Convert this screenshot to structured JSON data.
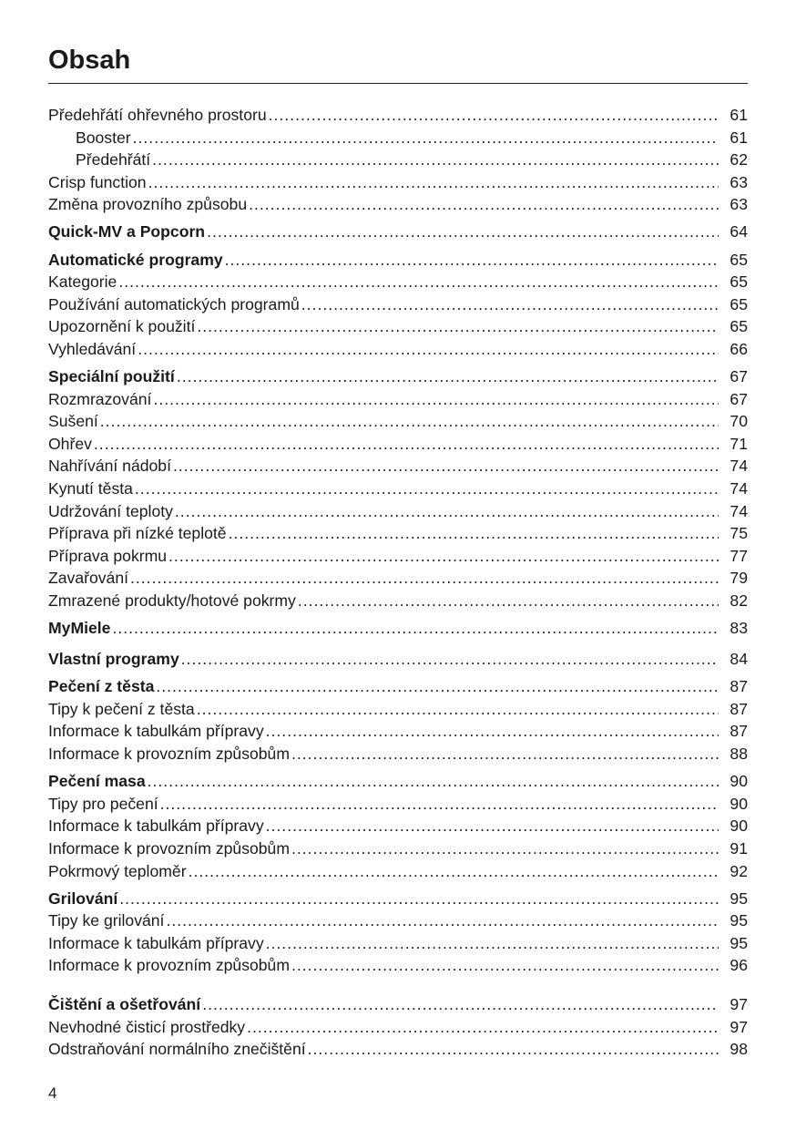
{
  "title": "Obsah",
  "page_number": "4",
  "entries": [
    {
      "label": "Předehřátí ohřevného prostoru",
      "page": "61"
    },
    {
      "label": "Booster",
      "page": "61",
      "sub": true
    },
    {
      "label": "Předehřátí",
      "page": "62",
      "sub": true
    },
    {
      "label": "Crisp function",
      "page": "63"
    },
    {
      "label": "Změna provozního způsobu",
      "page": "63"
    },
    {
      "label": "Quick-MV a Popcorn",
      "page": "64",
      "bold": true
    },
    {
      "label": "Automatické programy",
      "page": "65",
      "bold": true
    },
    {
      "label": "Kategorie",
      "page": "65"
    },
    {
      "label": "Používání automatických programů",
      "page": "65"
    },
    {
      "label": "Upozornění k použití",
      "page": "65"
    },
    {
      "label": "Vyhledávání",
      "page": "66"
    },
    {
      "label": "Speciální použití",
      "page": "67",
      "bold": true
    },
    {
      "label": "Rozmrazování",
      "page": "67"
    },
    {
      "label": "Sušení",
      "page": "70"
    },
    {
      "label": "Ohřev",
      "page": "71"
    },
    {
      "label": "Nahřívání nádobí",
      "page": "74"
    },
    {
      "label": "Kynutí těsta",
      "page": "74"
    },
    {
      "label": "Udržování teploty",
      "page": "74"
    },
    {
      "label": "Příprava při nízké teplotě",
      "page": "75"
    },
    {
      "label": "Příprava pokrmu",
      "page": "77"
    },
    {
      "label": "Zavařování",
      "page": "79"
    },
    {
      "label": "Zmrazené produkty/hotové pokrmy",
      "page": "82"
    },
    {
      "label": "MyMiele",
      "page": "83",
      "bold": true
    },
    {
      "label": "Vlastní programy",
      "page": "84",
      "bold": true
    },
    {
      "label": "Pečení z těsta",
      "page": "87",
      "bold": true
    },
    {
      "label": "Tipy k pečení z těsta",
      "page": "87"
    },
    {
      "label": "Informace k tabulkám přípravy",
      "page": "87"
    },
    {
      "label": "Informace k provozním způsobům",
      "page": "88"
    },
    {
      "label": "Pečení masa",
      "page": "90",
      "bold": true
    },
    {
      "label": "Tipy pro pečení",
      "page": "90"
    },
    {
      "label": "Informace k tabulkám přípravy",
      "page": "90"
    },
    {
      "label": "Informace k provozním způsobům",
      "page": "91"
    },
    {
      "label": "Pokrmový teploměr",
      "page": "92"
    },
    {
      "label": "Grilování",
      "page": "95",
      "bold": true
    },
    {
      "label": "Tipy ke grilování",
      "page": "95"
    },
    {
      "label": "Informace k tabulkám přípravy",
      "page": "95"
    },
    {
      "label": "Informace k provozním způsobům",
      "page": "96"
    },
    {
      "label": "Čištění a ošetřování",
      "page": "97",
      "bold": true
    },
    {
      "label": "Nevhodné čisticí prostředky",
      "page": "97"
    },
    {
      "label": "Odstraňování normálního znečištění",
      "page": "98"
    }
  ]
}
